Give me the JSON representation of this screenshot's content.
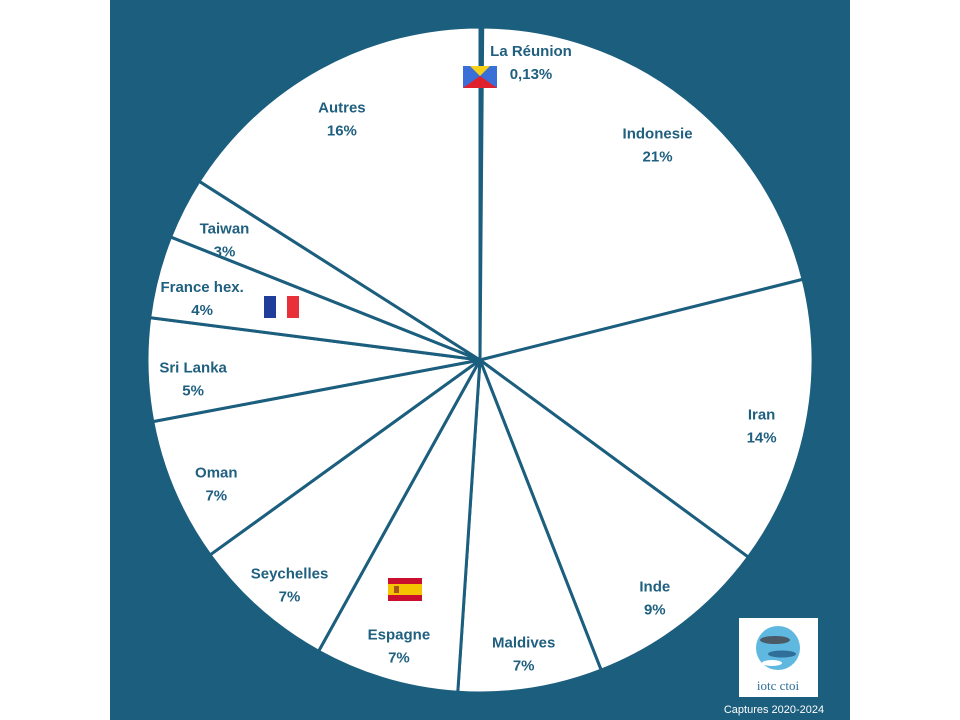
{
  "chart_data": {
    "type": "pie",
    "categories": [
      "La Réunion",
      "Indonesie",
      "Iran",
      "Inde",
      "Maldives",
      "Espagne",
      "Seychelles",
      "Oman",
      "Sri Lanka",
      "France hex.",
      "Taiwan",
      "Autres"
    ],
    "values": [
      0.13,
      21,
      14,
      9,
      7,
      7,
      7,
      7,
      5,
      4,
      3,
      16
    ],
    "value_labels": [
      "0,13%",
      "21%",
      "14%",
      "9%",
      "7%",
      "7%",
      "7%",
      "7%",
      "5%",
      "4%",
      "3%",
      "16%"
    ],
    "color": "#ffffff",
    "edge_color": "#1b5e7e",
    "label_color": "#1f5f7f"
  },
  "logo": "iotc ctoi",
  "footer": "Captures 2020-2024"
}
